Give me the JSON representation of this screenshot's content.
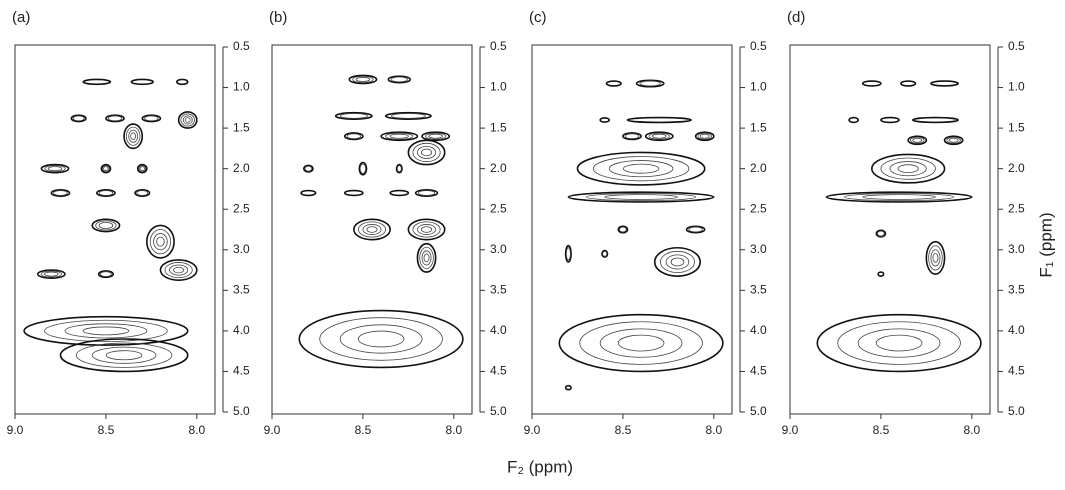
{
  "figure": {
    "x_label": "F₂ (ppm)",
    "y_label": "F₁ (ppm)"
  },
  "chart_data": [
    {
      "type": "contour",
      "title": "(a)",
      "xlim": [
        9.0,
        7.9
      ],
      "ylim": [
        0.5,
        5.0
      ],
      "xticks": [
        {
          "value": 9,
          "label": "9.0"
        },
        8.5,
        {
          "value": 8,
          "label": "8.0"
        }
      ],
      "yticks": [
        0.5,
        {
          "value": 1,
          "label": "1.0"
        },
        1.5,
        {
          "value": 2,
          "label": "2.0"
        },
        2.5,
        {
          "value": 3,
          "label": "3.0"
        },
        3.5,
        {
          "value": 4,
          "label": "4.0"
        },
        4.5,
        {
          "value": 5,
          "label": "5.0"
        }
      ],
      "peaks": {
        "x": [
          8.55,
          8.3,
          8.08,
          8.65,
          8.45,
          8.25,
          8.05,
          8.35,
          8.78,
          8.5,
          8.3,
          8.75,
          8.5,
          8.3,
          8.5,
          8.2,
          8.8,
          8.5,
          8.1,
          8.5,
          8.4
        ],
        "y": [
          0.93,
          0.93,
          0.93,
          1.38,
          1.38,
          1.38,
          1.4,
          1.6,
          2.0,
          2.0,
          2.0,
          2.3,
          2.3,
          2.3,
          2.7,
          2.9,
          3.3,
          3.3,
          3.25,
          4.0,
          4.3
        ],
        "x_width": [
          0.15,
          0.12,
          0.06,
          0.08,
          0.1,
          0.1,
          0.1,
          0.1,
          0.15,
          0.05,
          0.05,
          0.1,
          0.1,
          0.08,
          0.15,
          0.15,
          0.15,
          0.08,
          0.2,
          0.9,
          0.7
        ],
        "y_width": [
          0.06,
          0.06,
          0.06,
          0.08,
          0.08,
          0.08,
          0.2,
          0.3,
          0.1,
          0.1,
          0.1,
          0.08,
          0.08,
          0.08,
          0.15,
          0.4,
          0.1,
          0.08,
          0.25,
          0.35,
          0.4
        ]
      }
    },
    {
      "type": "contour",
      "title": "(b)",
      "xlim": [
        9.0,
        7.9
      ],
      "ylim": [
        0.5,
        5.0
      ],
      "xticks": [
        {
          "value": 9,
          "label": "9.0"
        },
        8.5,
        {
          "value": 8,
          "label": "8.0"
        }
      ],
      "yticks": [
        0.5,
        {
          "value": 1,
          "label": "1.0"
        },
        1.5,
        {
          "value": 2,
          "label": "2.0"
        },
        2.5,
        {
          "value": 3,
          "label": "3.0"
        },
        3.5,
        {
          "value": 4,
          "label": "4.0"
        },
        4.5,
        {
          "value": 5,
          "label": "5.0"
        }
      ],
      "peaks": {
        "x": [
          8.5,
          8.3,
          8.55,
          8.25,
          8.55,
          8.3,
          8.1,
          8.15,
          8.8,
          8.5,
          8.3,
          8.8,
          8.55,
          8.3,
          8.15,
          8.45,
          8.15,
          8.15,
          8.4
        ],
        "y": [
          0.9,
          0.9,
          1.35,
          1.35,
          1.6,
          1.6,
          1.6,
          1.8,
          2.0,
          2.0,
          2.0,
          2.3,
          2.3,
          2.3,
          2.3,
          2.75,
          2.75,
          3.1,
          4.1
        ],
        "x_width": [
          0.15,
          0.12,
          0.2,
          0.25,
          0.1,
          0.2,
          0.15,
          0.2,
          0.05,
          0.04,
          0.03,
          0.08,
          0.1,
          0.1,
          0.12,
          0.2,
          0.2,
          0.1,
          0.9
        ],
        "y_width": [
          0.1,
          0.08,
          0.08,
          0.08,
          0.08,
          0.1,
          0.1,
          0.3,
          0.08,
          0.15,
          0.1,
          0.06,
          0.06,
          0.06,
          0.08,
          0.25,
          0.25,
          0.35,
          0.7
        ]
      }
    },
    {
      "type": "contour",
      "title": "(c)",
      "xlim": [
        9.0,
        7.9
      ],
      "ylim": [
        0.5,
        5.0
      ],
      "xticks": [
        {
          "value": 9,
          "label": "9.0"
        },
        8.5,
        {
          "value": 8,
          "label": "8.0"
        }
      ],
      "yticks": [
        0.5,
        {
          "value": 1,
          "label": "1.0"
        },
        1.5,
        {
          "value": 2,
          "label": "2.0"
        },
        2.5,
        {
          "value": 3,
          "label": "3.0"
        },
        3.5,
        {
          "value": 4,
          "label": "4.0"
        },
        4.5,
        {
          "value": 5,
          "label": "5.0"
        }
      ],
      "peaks": {
        "x": [
          8.55,
          8.35,
          8.6,
          8.3,
          8.45,
          8.3,
          8.05,
          8.4,
          8.4,
          8.5,
          8.1,
          8.2,
          8.8,
          8.6,
          8.4,
          8.8
        ],
        "y": [
          0.95,
          0.95,
          1.4,
          1.4,
          1.6,
          1.6,
          1.6,
          2.0,
          2.35,
          2.75,
          2.75,
          3.15,
          3.05,
          3.05,
          4.15,
          4.7
        ],
        "x_width": [
          0.08,
          0.15,
          0.05,
          0.35,
          0.1,
          0.15,
          0.1,
          0.7,
          0.8,
          0.05,
          0.1,
          0.25,
          0.03,
          0.03,
          0.9,
          0.03
        ],
        "y_width": [
          0.06,
          0.08,
          0.05,
          0.06,
          0.08,
          0.1,
          0.1,
          0.4,
          0.12,
          0.08,
          0.08,
          0.35,
          0.2,
          0.08,
          0.7,
          0.05
        ]
      }
    },
    {
      "type": "contour",
      "title": "(d)",
      "xlim": [
        9.0,
        7.9
      ],
      "ylim": [
        0.5,
        5.0
      ],
      "xticks": [
        {
          "value": 9,
          "label": "9.0"
        },
        8.5,
        {
          "value": 8,
          "label": "8.0"
        }
      ],
      "yticks": [
        0.5,
        {
          "value": 1,
          "label": "1.0"
        },
        1.5,
        {
          "value": 2,
          "label": "2.0"
        },
        2.5,
        {
          "value": 3,
          "label": "3.0"
        },
        3.5,
        {
          "value": 4,
          "label": "4.0"
        },
        4.5,
        {
          "value": 5,
          "label": "5.0"
        }
      ],
      "peaks": {
        "x": [
          8.55,
          8.35,
          8.15,
          8.65,
          8.45,
          8.2,
          8.3,
          8.1,
          8.35,
          8.4,
          8.5,
          8.2,
          8.5,
          8.4
        ],
        "y": [
          0.95,
          0.95,
          0.95,
          1.4,
          1.4,
          1.4,
          1.65,
          1.65,
          2.0,
          2.35,
          2.8,
          3.1,
          3.3,
          4.15
        ],
        "x_width": [
          0.1,
          0.08,
          0.15,
          0.05,
          0.1,
          0.25,
          0.1,
          0.1,
          0.4,
          0.8,
          0.05,
          0.1,
          0.03,
          0.9
        ],
        "y_width": [
          0.06,
          0.06,
          0.06,
          0.06,
          0.06,
          0.06,
          0.1,
          0.1,
          0.35,
          0.12,
          0.08,
          0.4,
          0.05,
          0.7
        ]
      }
    }
  ]
}
